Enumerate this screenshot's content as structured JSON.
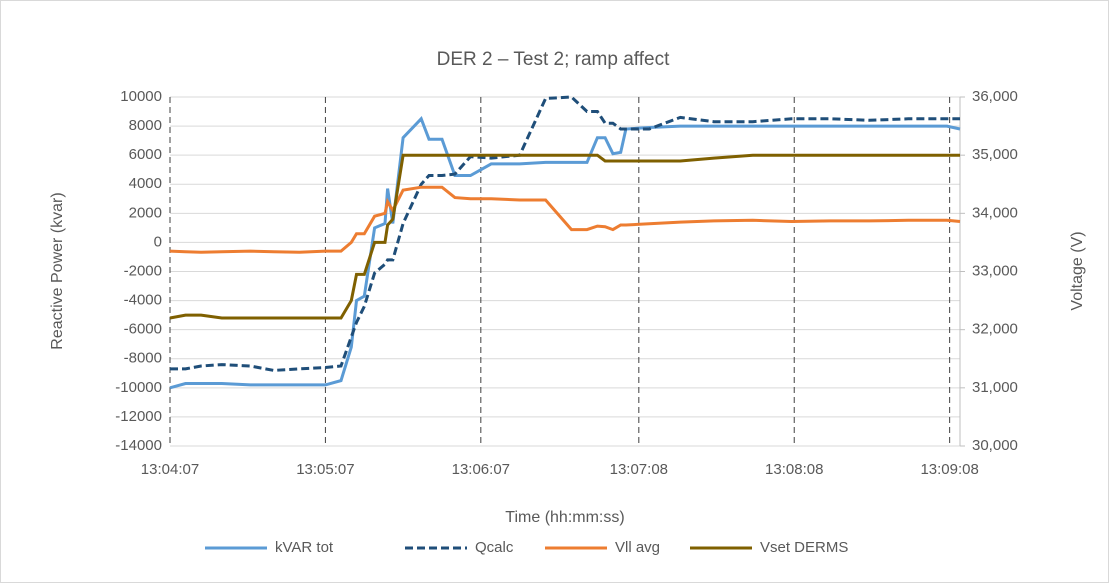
{
  "chart_data": {
    "type": "line",
    "title": "DER 2 – Test 2; ramp affect",
    "xlabel": "Time (hh:mm:ss)",
    "ylabel": "Reactive Power (kvar)",
    "y2label": "Voltage (V)",
    "x": [
      "13:04:07",
      "13:04:13",
      "13:04:19",
      "13:04:27",
      "13:04:38",
      "13:04:47",
      "13:04:57",
      "13:05:07",
      "13:05:13",
      "13:05:17",
      "13:05:19",
      "13:05:22",
      "13:05:26",
      "13:05:30",
      "13:05:31",
      "13:05:33",
      "13:05:37",
      "13:05:44",
      "13:05:47",
      "13:05:52",
      "13:05:57",
      "13:06:03",
      "13:06:11",
      "13:06:22",
      "13:06:32",
      "13:06:42",
      "13:06:48",
      "13:06:52",
      "13:06:55",
      "13:06:58",
      "13:07:01",
      "13:07:03",
      "13:07:12",
      "13:07:24",
      "13:07:37",
      "13:07:52",
      "13:08:07",
      "13:08:22",
      "13:08:37",
      "13:08:52",
      "13:09:07",
      "13:09:12"
    ],
    "series": [
      {
        "name": "kVAR tot",
        "color": "#5b9bd5",
        "style": "solid",
        "axis": "y",
        "values": [
          -10000,
          -9700,
          -9700,
          -9700,
          -9800,
          -9800,
          -9800,
          -9800,
          -9500,
          -7200,
          -4000,
          -3700,
          1000,
          1300,
          3700,
          1300,
          7200,
          8500,
          7100,
          7100,
          4600,
          4600,
          5400,
          5400,
          5500,
          5500,
          5500,
          7200,
          7200,
          6100,
          6200,
          7800,
          7900,
          8000,
          8000,
          8000,
          8000,
          8000,
          8000,
          8000,
          8000,
          7800
        ]
      },
      {
        "name": "Qcalc",
        "color": "#1f4e79",
        "style": "dashed",
        "axis": "y",
        "values": [
          -8700,
          -8700,
          -8500,
          -8400,
          -8500,
          -8800,
          -8700,
          -8600,
          -8500,
          -6500,
          -5500,
          -4400,
          -2100,
          -1500,
          -1200,
          -1200,
          1300,
          4000,
          4600,
          4600,
          4700,
          5900,
          5800,
          6000,
          9900,
          10000,
          9000,
          9000,
          8200,
          8200,
          7800,
          7800,
          7800,
          8600,
          8300,
          8300,
          8500,
          8500,
          8400,
          8500,
          8500,
          8500
        ]
      },
      {
        "name": "Vll avg",
        "color": "#ed7d31",
        "style": "solid",
        "axis": "y2",
        "values": [
          33350,
          33340,
          33330,
          33340,
          33350,
          33340,
          33330,
          33350,
          33350,
          33500,
          33650,
          33650,
          33950,
          34000,
          34200,
          34050,
          34400,
          34450,
          34450,
          34450,
          34270,
          34250,
          34250,
          34230,
          34230,
          33720,
          33720,
          33780,
          33770,
          33720,
          33800,
          33800,
          33820,
          33850,
          33870,
          33880,
          33860,
          33870,
          33870,
          33880,
          33880,
          33860
        ]
      },
      {
        "name": "Vset DERMS",
        "color": "#7f6000",
        "style": "solid",
        "axis": "y2",
        "values": [
          32200,
          32250,
          32250,
          32200,
          32200,
          32200,
          32200,
          32200,
          32200,
          32500,
          32950,
          32950,
          33500,
          33500,
          33800,
          33900,
          35000,
          35000,
          35000,
          35000,
          35000,
          35000,
          35000,
          35000,
          35000,
          35000,
          35000,
          35000,
          34900,
          34900,
          34900,
          34900,
          34900,
          34900,
          34950,
          35000,
          35000,
          35000,
          35000,
          35000,
          35000,
          35000
        ]
      }
    ],
    "xlim": [
      "13:04:07",
      "13:09:12"
    ],
    "xticks": [
      "13:04:07",
      "13:05:07",
      "13:06:07",
      "13:07:08",
      "13:08:08",
      "13:09:08"
    ],
    "ylim": [
      -14000,
      10000
    ],
    "yticks": [
      -14000,
      -12000,
      -10000,
      -8000,
      -6000,
      -4000,
      -2000,
      0,
      2000,
      4000,
      6000,
      8000,
      10000
    ],
    "y2lim": [
      30000,
      36000
    ],
    "y2ticks": [
      {
        "value": 30000,
        "label": "30,000"
      },
      {
        "value": 31000,
        "label": "31,000"
      },
      {
        "value": 32000,
        "label": "32,000"
      },
      {
        "value": 33000,
        "label": "33,000"
      },
      {
        "value": 34000,
        "label": "34,000"
      },
      {
        "value": 35000,
        "label": "35,000"
      },
      {
        "value": 36000,
        "label": "36,000"
      }
    ],
    "grid": true,
    "legend": "bottom"
  }
}
